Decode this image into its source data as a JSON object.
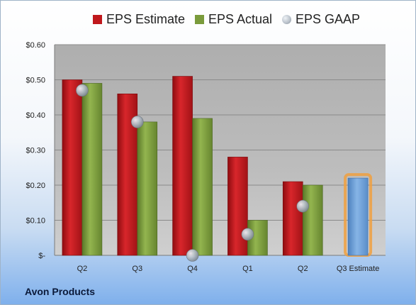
{
  "company": "Avon Products",
  "colors": {
    "estimate": "#c0181c",
    "actual": "#7a9b3b",
    "gaap": "#b7bfc8",
    "q3_estimate": "#6b9fd6",
    "q3_estimate_glow": "#f0a040",
    "plot_bg_top": "#aeaeae",
    "plot_bg_bottom": "#c8c8c8",
    "grid": "#8a8a8a"
  },
  "legend": [
    {
      "label": "EPS Estimate",
      "color": "#c0181c",
      "shape": "square"
    },
    {
      "label": "EPS Actual",
      "color": "#7a9b3b",
      "shape": "square"
    },
    {
      "label": "EPS GAAP",
      "color": "#b7bfc8",
      "shape": "circle"
    }
  ],
  "chart_data": {
    "type": "bar",
    "title": "",
    "xlabel": "",
    "ylabel": "",
    "categories": [
      "Q2",
      "Q3",
      "Q4",
      "Q1",
      "Q2",
      "Q3 Estimate"
    ],
    "series": [
      {
        "name": "EPS Estimate",
        "values": [
          0.5,
          0.46,
          0.51,
          0.28,
          0.21,
          null
        ]
      },
      {
        "name": "EPS Actual",
        "values": [
          0.49,
          0.38,
          0.39,
          0.1,
          0.2,
          null
        ]
      },
      {
        "name": "EPS GAAP",
        "type": "scatter",
        "values": [
          0.47,
          0.38,
          0.0,
          0.06,
          0.14,
          null
        ]
      },
      {
        "values": [
          null,
          null,
          null,
          null,
          null,
          0.22
        ]
      }
    ],
    "ylim": [
      0,
      0.6
    ],
    "yticks": [
      0,
      0.1,
      0.2,
      0.3,
      0.4,
      0.5,
      0.6
    ],
    "ytick_labels": [
      "$-",
      "$0.10",
      "$0.20",
      "$0.30",
      "$0.40",
      "$0.50",
      "$0.60"
    ],
    "grid": true,
    "legend_position": "top"
  }
}
